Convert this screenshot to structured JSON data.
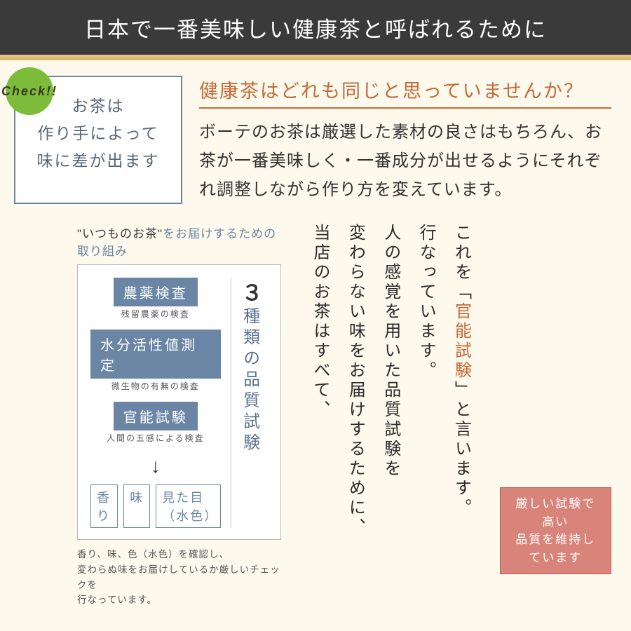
{
  "header": {
    "title": "日本で一番美味しい健康茶と呼ばれるために"
  },
  "callout": {
    "badge": "Check!!",
    "line1": "お茶は",
    "line2": "作り手によって",
    "line3": "味に差が出ます"
  },
  "top": {
    "question": "健康茶はどれも同じと思っていませんか？",
    "answer": "ボーテのお茶は厳選した素材の良さはもちろん、お茶が一番美味しく・一番成分が出せるようにそれぞれ調整しながら作り方を変えています。"
  },
  "diagram": {
    "title_em": "\"いつものお茶\"",
    "title_rest": "をお届けするための取り組み",
    "vlabel_num": "３",
    "vlabel_rest": "種類の品質試験",
    "items": [
      {
        "label": "農薬検査",
        "sub": "残留農薬の検査"
      },
      {
        "label": "水分活性値測定",
        "sub": "微生物の有無の検査"
      },
      {
        "label": "官能試験",
        "sub": "人間の五感による検査"
      }
    ],
    "results": [
      "香り",
      "味",
      "見た目（水色）"
    ],
    "caption": "香り、味、色（水色）を確認し、\n変わらぬ味をお届けしているか厳しいチェックを\n行なっています。"
  },
  "vertical": {
    "c1a": "これを「",
    "c1b": "官能試験",
    "c1c": "」と言います。",
    "c2": "行なっています。",
    "c3": "人の感覚を用いた品質試験を",
    "c4": "変わらない味をお届けするために、",
    "c5": "当店のお茶はすべて、"
  },
  "badge": {
    "line1": "厳しい試験で高い",
    "line2": "品質を維持しています"
  }
}
